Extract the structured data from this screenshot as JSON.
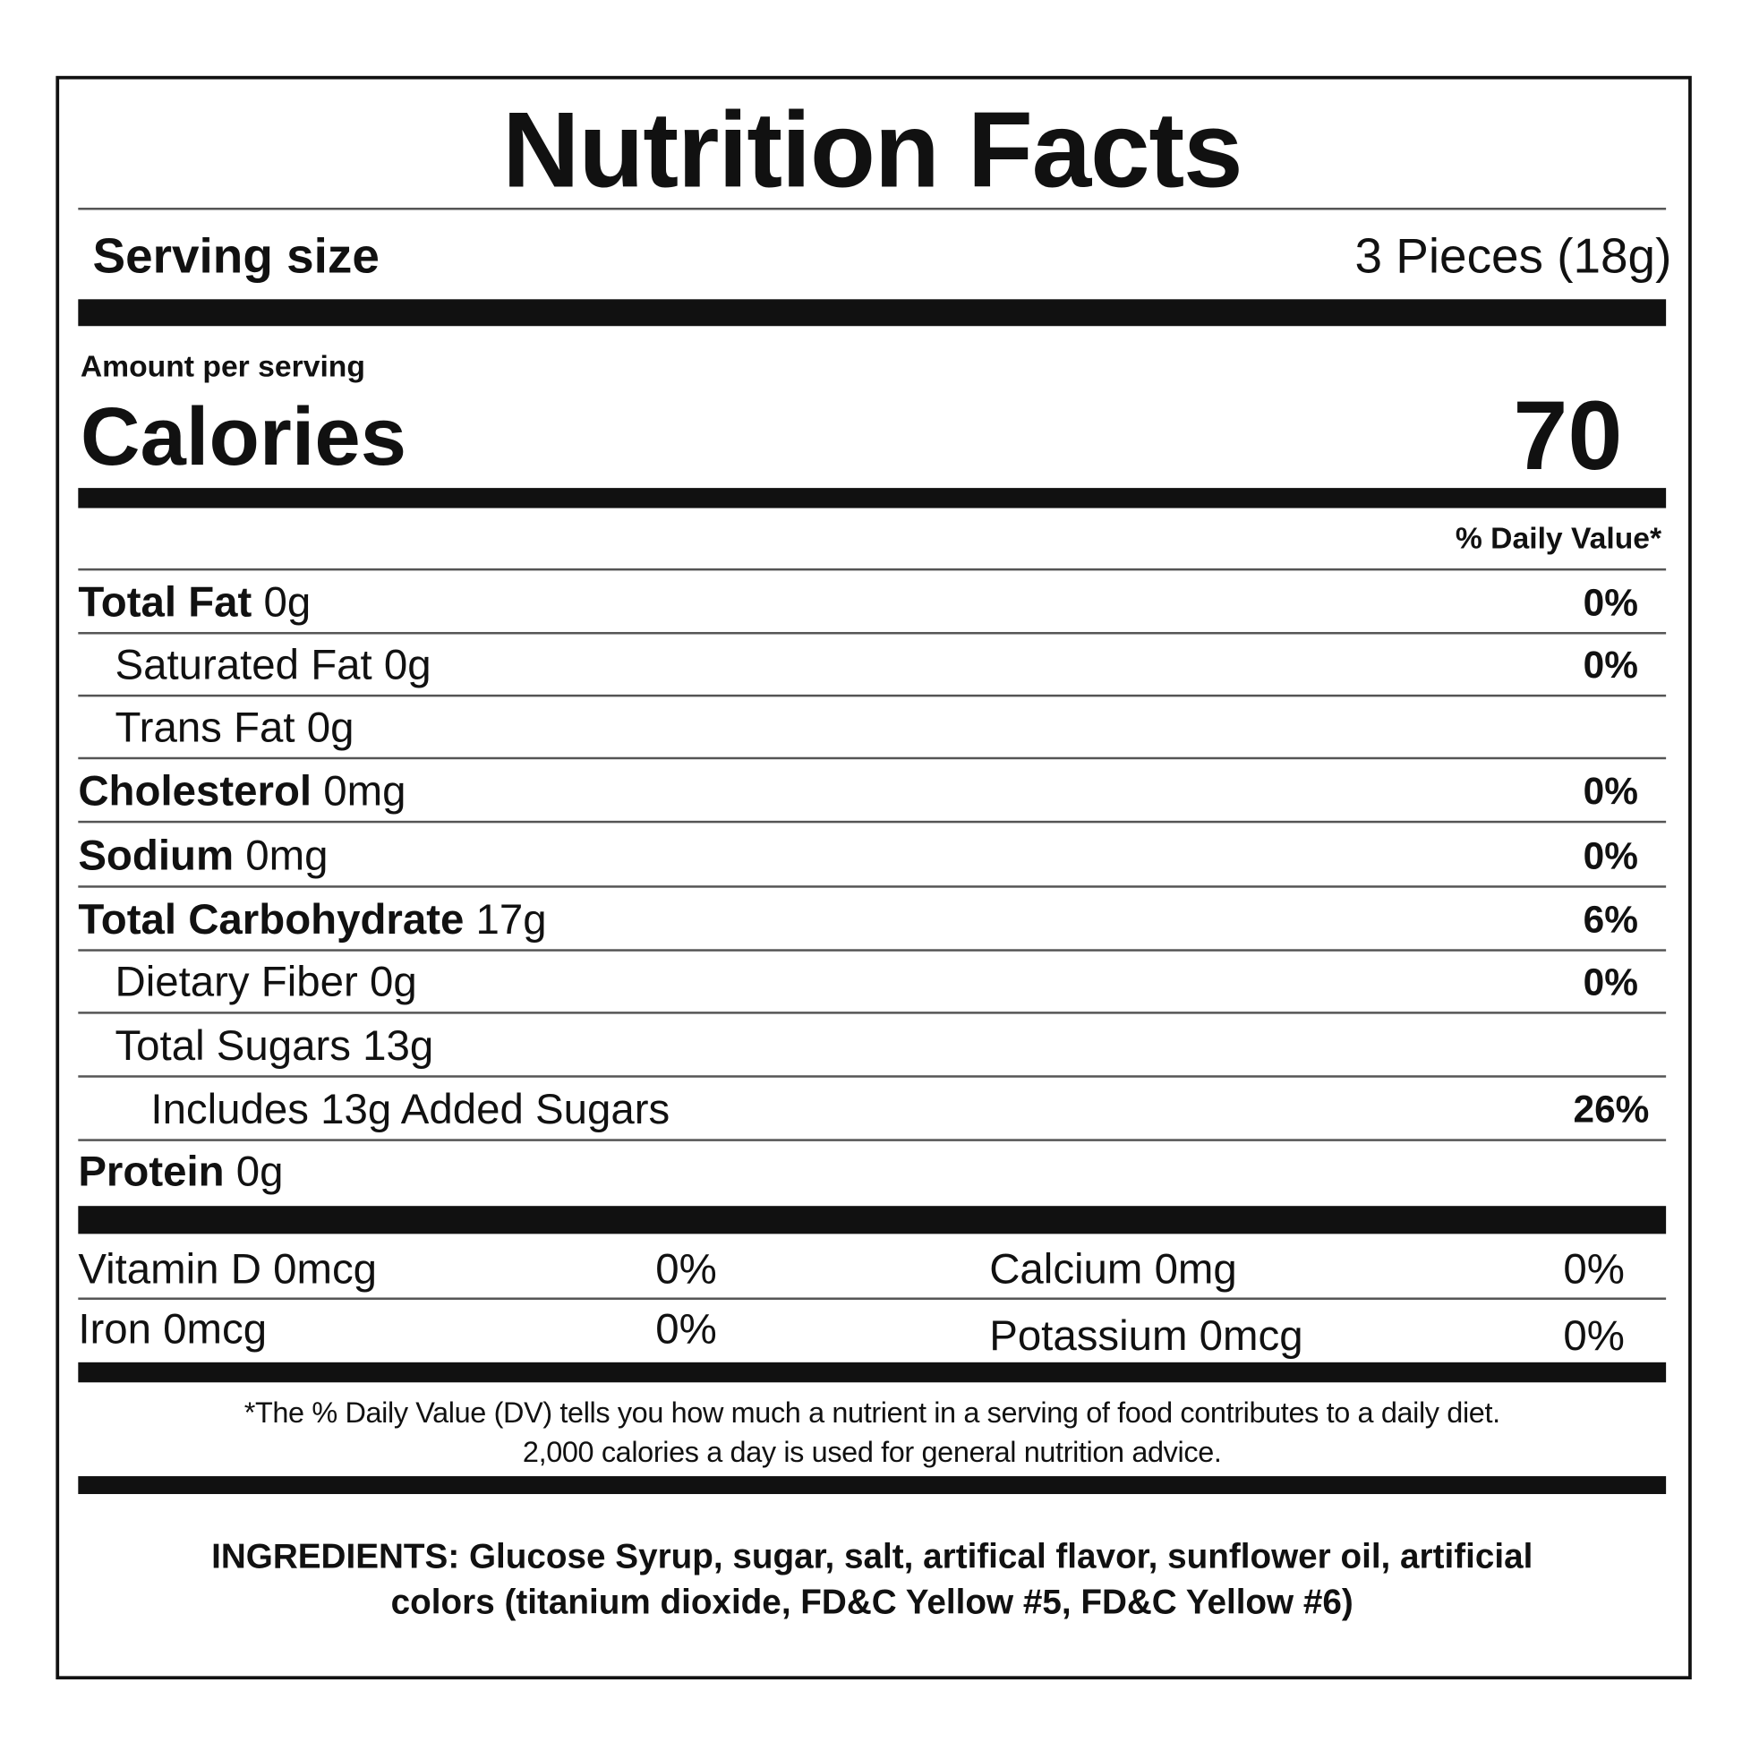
{
  "title": "Nutrition Facts",
  "serving": {
    "label": "Serving size",
    "value": "3 Pieces (18g)"
  },
  "amount_per_serving": "Amount per serving",
  "calories": {
    "label": "Calories",
    "value": "70"
  },
  "dv_header": "% Daily Value*",
  "nutrients": [
    {
      "name": "Total Fat",
      "amount": "0g",
      "dv": "0%",
      "bold": true,
      "indent": 0
    },
    {
      "name": "Saturated Fat",
      "amount": "0g",
      "dv": "0%",
      "bold": false,
      "indent": 1
    },
    {
      "name": "Trans Fat",
      "amount": "0g",
      "dv": "",
      "bold": false,
      "indent": 1
    },
    {
      "name": "Cholesterol",
      "amount": "0mg",
      "dv": "0%",
      "bold": true,
      "indent": 0
    },
    {
      "name": "Sodium",
      "amount": "0mg",
      "dv": "0%",
      "bold": true,
      "indent": 0
    },
    {
      "name": "Total Carbohydrate",
      "amount": "17g",
      "dv": "6%",
      "bold": true,
      "indent": 0
    },
    {
      "name": "Dietary Fiber",
      "amount": "0g",
      "dv": "0%",
      "bold": false,
      "indent": 1
    },
    {
      "name": "Total Sugars",
      "amount": "13g",
      "dv": "",
      "bold": false,
      "indent": 1
    },
    {
      "name": "Includes 13g Added Sugars",
      "amount": "",
      "dv": "26%",
      "bold": false,
      "indent": 2
    },
    {
      "name": "Protein",
      "amount": "0g",
      "dv": "",
      "bold": true,
      "indent": 0
    }
  ],
  "vitamins": [
    {
      "name": "Vitamin D 0mcg",
      "dv": "0%"
    },
    {
      "name": "Calcium 0mg",
      "dv": "0%"
    },
    {
      "name": "Iron 0mcg",
      "dv": "0%"
    },
    {
      "name": "Potassium 0mcg",
      "dv": "0%"
    }
  ],
  "footnote": [
    "*The % Daily Value (DV) tells you how much a nutrient in a serving of food contributes to a daily diet.",
    "2,000 calories a day is used for general nutrition advice."
  ],
  "ingredients": [
    "INGREDIENTS: Glucose Syrup, sugar, salt, artifical flavor, sunflower oil, artificial",
    "colors (titanium dioxide, FD&C Yellow #5, FD&C Yellow #6)"
  ]
}
